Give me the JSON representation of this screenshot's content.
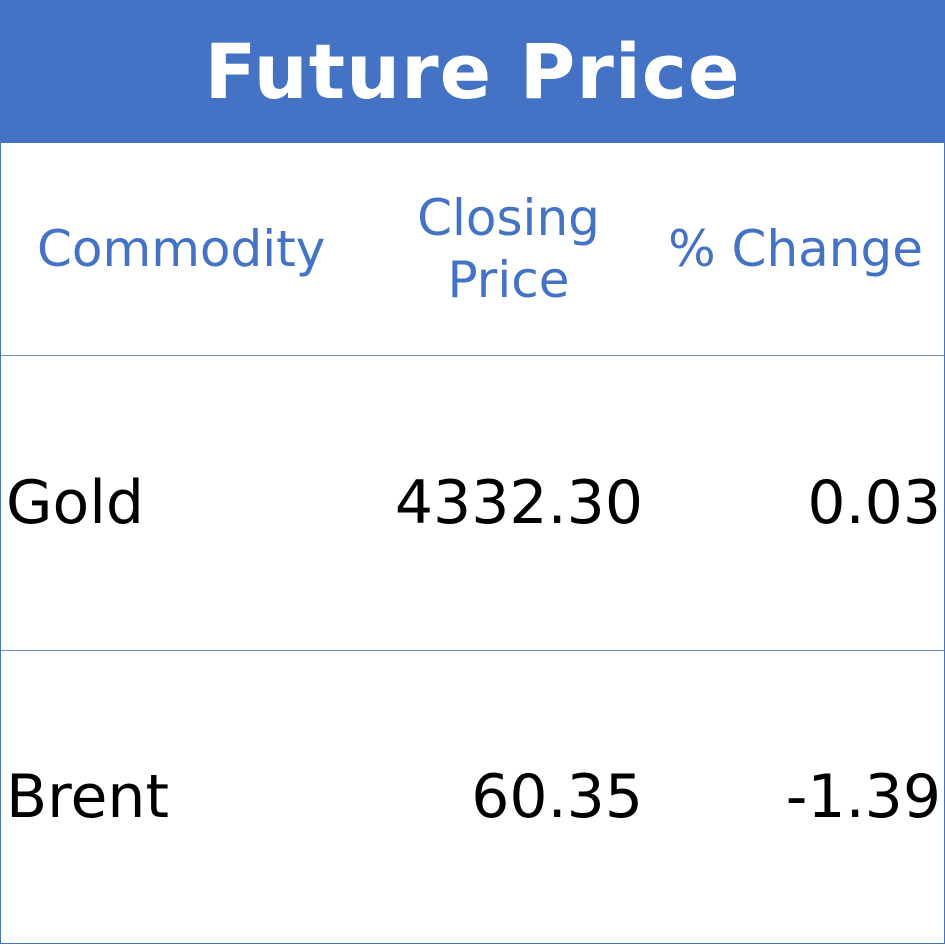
{
  "title": "Future Price",
  "columns": [
    "Commodity",
    "Closing Price",
    "% Change"
  ],
  "rows": [
    {
      "commodity": "Gold",
      "closing_price": "4332.30",
      "change": "0.03"
    },
    {
      "commodity": "Brent",
      "closing_price": "60.35",
      "change": "-1.39"
    }
  ],
  "colors": {
    "accent": "#4472C4"
  }
}
